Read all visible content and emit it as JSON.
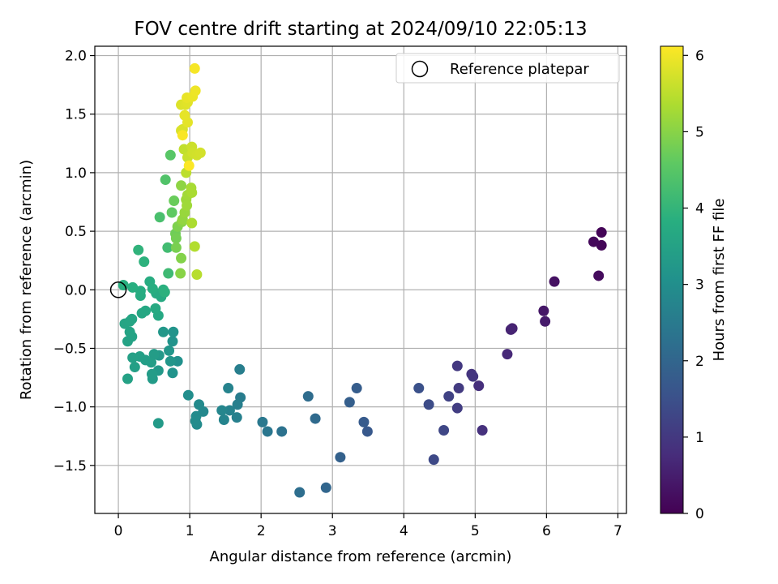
{
  "chart_data": {
    "type": "scatter",
    "title": "FOV centre drift starting at 2024/09/10 22:05:13",
    "xlabel": "Angular distance from reference (arcmin)",
    "ylabel": "Rotation from reference (arcmin)",
    "xlim": [
      -0.33,
      7.12
    ],
    "ylim": [
      -1.91,
      2.08
    ],
    "xticks": [
      0,
      1,
      2,
      3,
      4,
      5,
      6,
      7
    ],
    "yticks": [
      -1.5,
      -1.0,
      -0.5,
      0.0,
      0.5,
      1.0,
      1.5,
      2.0
    ],
    "xtick_labels": [
      "0",
      "1",
      "2",
      "3",
      "4",
      "5",
      "6",
      "7"
    ],
    "ytick_labels": [
      "−1.5",
      "−1.0",
      "−0.5",
      "0.0",
      "0.5",
      "1.0",
      "1.5",
      "2.0"
    ],
    "grid": true,
    "legend": {
      "position": "top-right",
      "entries": [
        "Reference platepar"
      ]
    },
    "reference_point": {
      "x": 0,
      "y": 0
    },
    "colormap": "viridis",
    "colorbar": {
      "label": "Hours from first FF file",
      "range": [
        0,
        6.12
      ],
      "ticks": [
        0,
        1,
        2,
        3,
        4,
        5,
        6
      ],
      "tick_labels": [
        "0",
        "1",
        "2",
        "3",
        "4",
        "5",
        "6"
      ]
    },
    "points": [
      {
        "x": 6.77,
        "y": 0.49,
        "c": 0.05
      },
      {
        "x": 6.77,
        "y": 0.38,
        "c": 0.08
      },
      {
        "x": 6.66,
        "y": 0.41,
        "c": 0.12
      },
      {
        "x": 6.73,
        "y": 0.12,
        "c": 0.18
      },
      {
        "x": 6.11,
        "y": 0.07,
        "c": 0.28
      },
      {
        "x": 5.96,
        "y": -0.18,
        "c": 0.38
      },
      {
        "x": 5.98,
        "y": -0.27,
        "c": 0.45
      },
      {
        "x": 5.52,
        "y": -0.33,
        "c": 0.55
      },
      {
        "x": 5.5,
        "y": -0.34,
        "c": 0.6
      },
      {
        "x": 5.45,
        "y": -0.55,
        "c": 0.7
      },
      {
        "x": 5.05,
        "y": -0.82,
        "c": 0.8
      },
      {
        "x": 5.1,
        "y": -1.2,
        "c": 0.85
      },
      {
        "x": 4.95,
        "y": -0.72,
        "c": 0.9
      },
      {
        "x": 4.97,
        "y": -0.74,
        "c": 0.95
      },
      {
        "x": 4.75,
        "y": -0.65,
        "c": 1.0
      },
      {
        "x": 4.77,
        "y": -0.84,
        "c": 1.05
      },
      {
        "x": 4.75,
        "y": -1.01,
        "c": 1.1
      },
      {
        "x": 4.63,
        "y": -0.91,
        "c": 1.2
      },
      {
        "x": 4.56,
        "y": -1.2,
        "c": 1.3
      },
      {
        "x": 4.42,
        "y": -1.45,
        "c": 1.35
      },
      {
        "x": 4.35,
        "y": -0.98,
        "c": 1.4
      },
      {
        "x": 4.21,
        "y": -0.84,
        "c": 1.5
      },
      {
        "x": 3.49,
        "y": -1.21,
        "c": 1.7
      },
      {
        "x": 3.44,
        "y": -1.13,
        "c": 1.75
      },
      {
        "x": 3.34,
        "y": -0.84,
        "c": 1.8
      },
      {
        "x": 3.24,
        "y": -0.96,
        "c": 1.85
      },
      {
        "x": 3.11,
        "y": -1.43,
        "c": 1.9
      },
      {
        "x": 2.91,
        "y": -1.69,
        "c": 2.0
      },
      {
        "x": 2.76,
        "y": -1.1,
        "c": 2.1
      },
      {
        "x": 2.66,
        "y": -0.91,
        "c": 2.15
      },
      {
        "x": 2.54,
        "y": -1.73,
        "c": 2.2
      },
      {
        "x": 2.29,
        "y": -1.21,
        "c": 2.3
      },
      {
        "x": 2.09,
        "y": -1.21,
        "c": 2.4
      },
      {
        "x": 2.02,
        "y": -1.13,
        "c": 2.45
      },
      {
        "x": 1.71,
        "y": -0.92,
        "c": 2.55
      },
      {
        "x": 1.7,
        "y": -0.68,
        "c": 2.6
      },
      {
        "x": 1.67,
        "y": -0.98,
        "c": 2.62
      },
      {
        "x": 1.66,
        "y": -1.09,
        "c": 2.65
      },
      {
        "x": 1.56,
        "y": -1.03,
        "c": 2.7
      },
      {
        "x": 1.54,
        "y": -0.84,
        "c": 2.72
      },
      {
        "x": 1.48,
        "y": -1.11,
        "c": 2.75
      },
      {
        "x": 1.45,
        "y": -1.03,
        "c": 2.78
      },
      {
        "x": 1.19,
        "y": -1.04,
        "c": 2.85
      },
      {
        "x": 1.13,
        "y": -0.98,
        "c": 2.88
      },
      {
        "x": 1.09,
        "y": -1.08,
        "c": 2.9
      },
      {
        "x": 1.1,
        "y": -1.15,
        "c": 2.92
      },
      {
        "x": 1.08,
        "y": -1.12,
        "c": 2.94
      },
      {
        "x": 0.98,
        "y": -0.9,
        "c": 2.98
      },
      {
        "x": 0.83,
        "y": -0.61,
        "c": 3.05
      },
      {
        "x": 0.76,
        "y": -0.71,
        "c": 3.1
      },
      {
        "x": 0.76,
        "y": -0.44,
        "c": 3.12
      },
      {
        "x": 0.77,
        "y": -0.36,
        "c": 3.15
      },
      {
        "x": 0.73,
        "y": -0.61,
        "c": 3.18
      },
      {
        "x": 0.71,
        "y": -0.52,
        "c": 3.2
      },
      {
        "x": 0.63,
        "y": -0.36,
        "c": 3.22
      },
      {
        "x": 0.57,
        "y": -0.56,
        "c": 3.25
      },
      {
        "x": 0.56,
        "y": -0.69,
        "c": 3.28
      },
      {
        "x": 0.56,
        "y": -1.14,
        "c": 3.3
      },
      {
        "x": 0.48,
        "y": -0.76,
        "c": 3.32
      },
      {
        "x": 0.47,
        "y": -0.72,
        "c": 3.34
      },
      {
        "x": 0.5,
        "y": -0.55,
        "c": 3.36
      },
      {
        "x": 0.46,
        "y": -0.62,
        "c": 3.38
      },
      {
        "x": 0.38,
        "y": -0.6,
        "c": 3.4
      },
      {
        "x": 0.3,
        "y": -0.57,
        "c": 3.42
      },
      {
        "x": 0.23,
        "y": -0.66,
        "c": 3.44
      },
      {
        "x": 0.2,
        "y": -0.58,
        "c": 3.46
      },
      {
        "x": 0.13,
        "y": -0.76,
        "c": 3.48
      },
      {
        "x": 0.13,
        "y": -0.44,
        "c": 3.5
      },
      {
        "x": 0.19,
        "y": -0.4,
        "c": 3.52
      },
      {
        "x": 0.16,
        "y": -0.36,
        "c": 3.54
      },
      {
        "x": 0.09,
        "y": -0.29,
        "c": 3.56
      },
      {
        "x": 0.19,
        "y": -0.25,
        "c": 3.58
      },
      {
        "x": 0.16,
        "y": -0.27,
        "c": 3.6
      },
      {
        "x": 0.33,
        "y": -0.2,
        "c": 3.62
      },
      {
        "x": 0.38,
        "y": -0.18,
        "c": 3.64
      },
      {
        "x": 0.56,
        "y": -0.22,
        "c": 3.66
      },
      {
        "x": 0.52,
        "y": -0.16,
        "c": 3.68
      },
      {
        "x": 0.6,
        "y": -0.06,
        "c": 3.7
      },
      {
        "x": 0.53,
        "y": -0.03,
        "c": 3.72
      },
      {
        "x": 0.31,
        "y": -0.05,
        "c": 3.74
      },
      {
        "x": 0.31,
        "y": -0.01,
        "c": 3.76
      },
      {
        "x": 0.44,
        "y": 0.07,
        "c": 3.78
      },
      {
        "x": 0.48,
        "y": 0.01,
        "c": 3.8
      },
      {
        "x": 0.2,
        "y": 0.02,
        "c": 3.82
      },
      {
        "x": 0.07,
        "y": 0.04,
        "c": 3.84
      },
      {
        "x": 0.63,
        "y": 0.0,
        "c": 3.86
      },
      {
        "x": 0.65,
        "y": -0.02,
        "c": 3.88
      },
      {
        "x": 0.36,
        "y": 0.24,
        "c": 3.9
      },
      {
        "x": 0.28,
        "y": 0.34,
        "c": 3.95
      },
      {
        "x": 0.7,
        "y": 0.14,
        "c": 4.15
      },
      {
        "x": 0.69,
        "y": 0.36,
        "c": 4.2
      },
      {
        "x": 0.58,
        "y": 0.62,
        "c": 4.3
      },
      {
        "x": 0.66,
        "y": 0.94,
        "c": 4.4
      },
      {
        "x": 0.73,
        "y": 1.15,
        "c": 4.5
      },
      {
        "x": 0.75,
        "y": 0.66,
        "c": 4.6
      },
      {
        "x": 0.78,
        "y": 0.76,
        "c": 4.7
      },
      {
        "x": 0.8,
        "y": 0.48,
        "c": 4.75
      },
      {
        "x": 0.81,
        "y": 0.44,
        "c": 4.8
      },
      {
        "x": 0.81,
        "y": 0.36,
        "c": 4.85
      },
      {
        "x": 0.83,
        "y": 0.54,
        "c": 4.9
      },
      {
        "x": 0.88,
        "y": 0.27,
        "c": 4.95
      },
      {
        "x": 0.87,
        "y": 0.14,
        "c": 5.0
      },
      {
        "x": 0.89,
        "y": 0.58,
        "c": 5.0
      },
      {
        "x": 0.88,
        "y": 0.89,
        "c": 5.05
      },
      {
        "x": 0.9,
        "y": 0.6,
        "c": 5.1
      },
      {
        "x": 0.93,
        "y": 0.66,
        "c": 5.15
      },
      {
        "x": 0.95,
        "y": 0.77,
        "c": 5.2
      },
      {
        "x": 0.96,
        "y": 0.72,
        "c": 5.22
      },
      {
        "x": 0.97,
        "y": 0.81,
        "c": 5.25
      },
      {
        "x": 1.02,
        "y": 0.87,
        "c": 5.3
      },
      {
        "x": 1.03,
        "y": 0.83,
        "c": 5.32
      },
      {
        "x": 1.03,
        "y": 0.57,
        "c": 5.35
      },
      {
        "x": 1.07,
        "y": 0.37,
        "c": 5.4
      },
      {
        "x": 1.1,
        "y": 0.13,
        "c": 5.45
      },
      {
        "x": 0.95,
        "y": 1.0,
        "c": 5.5
      },
      {
        "x": 0.92,
        "y": 1.2,
        "c": 5.55
      },
      {
        "x": 0.97,
        "y": 1.13,
        "c": 5.6
      },
      {
        "x": 1.03,
        "y": 1.22,
        "c": 5.65
      },
      {
        "x": 1.04,
        "y": 1.17,
        "c": 5.68
      },
      {
        "x": 1.1,
        "y": 1.15,
        "c": 5.7
      },
      {
        "x": 1.15,
        "y": 1.17,
        "c": 5.72
      },
      {
        "x": 0.9,
        "y": 1.37,
        "c": 5.75
      },
      {
        "x": 0.88,
        "y": 1.36,
        "c": 5.78
      },
      {
        "x": 0.88,
        "y": 1.58,
        "c": 5.8
      },
      {
        "x": 0.94,
        "y": 1.58,
        "c": 5.82
      },
      {
        "x": 0.97,
        "y": 1.6,
        "c": 5.85
      },
      {
        "x": 0.97,
        "y": 1.43,
        "c": 5.88
      },
      {
        "x": 0.93,
        "y": 1.49,
        "c": 5.9
      },
      {
        "x": 0.96,
        "y": 1.64,
        "c": 5.92
      },
      {
        "x": 1.04,
        "y": 1.65,
        "c": 5.95
      },
      {
        "x": 1.08,
        "y": 1.7,
        "c": 5.98
      },
      {
        "x": 1.07,
        "y": 1.89,
        "c": 6.05
      },
      {
        "x": 0.99,
        "y": 1.06,
        "c": 6.1
      },
      {
        "x": 0.9,
        "y": 1.32,
        "c": 6.08
      }
    ]
  }
}
